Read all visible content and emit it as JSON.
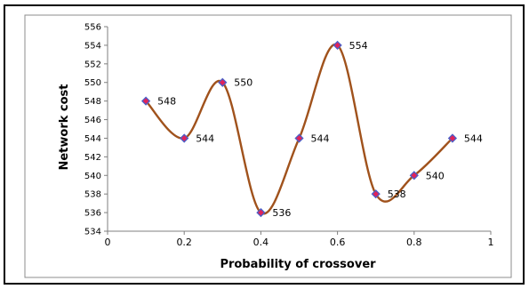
{
  "chart_data": {
    "type": "line",
    "title": "",
    "xlabel": "Probability of crossover",
    "ylabel": "Network cost",
    "xlim": [
      0,
      1
    ],
    "ylim": [
      534,
      556
    ],
    "x_ticks": [
      "0",
      "0.2",
      "0.4",
      "0.6",
      "0.8",
      "1"
    ],
    "y_ticks": [
      "534",
      "536",
      "538",
      "540",
      "542",
      "544",
      "546",
      "548",
      "550",
      "552",
      "554",
      "556"
    ],
    "grid": false,
    "legend": "none",
    "smooth": true,
    "series": [
      {
        "x": [
          0.1,
          0.2,
          0.3,
          0.4,
          0.5,
          0.6,
          0.7,
          0.8,
          0.9
        ],
        "values": [
          548,
          544,
          550,
          536,
          544,
          554,
          538,
          540,
          544
        ],
        "labels": [
          "548",
          "544",
          "550",
          "536",
          "544",
          "554",
          "538",
          "540",
          "544"
        ],
        "line_color": "#a0521c",
        "marker_color": "#e0235a",
        "marker_edge": "#4a5fc8",
        "marker": "diamond"
      }
    ]
  }
}
